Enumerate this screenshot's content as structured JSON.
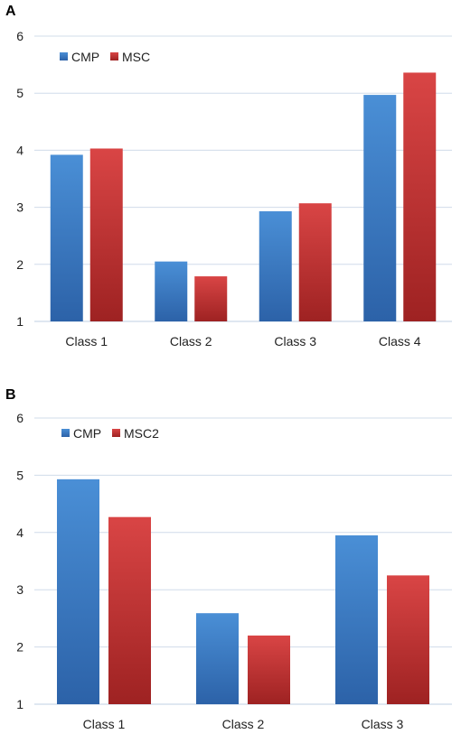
{
  "panels": [
    {
      "letter": "A"
    },
    {
      "letter": "B"
    }
  ],
  "colors": {
    "blue_top": "#4a8fd6",
    "blue_bottom": "#2c62a8",
    "red_top": "#d94545",
    "red_bottom": "#9e2222",
    "grid": "#d0dcea",
    "axis": "#bfcfe3"
  },
  "chart_data": [
    {
      "type": "bar",
      "title": "",
      "xlabel": "",
      "ylabel": "",
      "categories": [
        "Class 1",
        "Class 2",
        "Class 3",
        "Class 4"
      ],
      "series": [
        {
          "name": "CMP",
          "values": [
            3.92,
            2.05,
            2.93,
            4.97
          ]
        },
        {
          "name": "MSC",
          "values": [
            4.03,
            1.79,
            3.07,
            5.36
          ]
        }
      ],
      "ylim": [
        1,
        6
      ],
      "yticks": [
        "1",
        "2",
        "3",
        "4",
        "5",
        "6"
      ],
      "grid": true,
      "legend": "top-left"
    },
    {
      "type": "bar",
      "title": "",
      "xlabel": "",
      "ylabel": "",
      "categories": [
        "Class 1",
        "Class 2",
        "Class 3"
      ],
      "series": [
        {
          "name": "CMP",
          "values": [
            4.93,
            2.59,
            3.95
          ]
        },
        {
          "name": "MSC2",
          "values": [
            4.27,
            2.2,
            3.25
          ]
        }
      ],
      "ylim": [
        1,
        6
      ],
      "yticks": [
        "1",
        "2",
        "3",
        "4",
        "5",
        "6"
      ],
      "grid": true,
      "legend": "top-left"
    }
  ]
}
